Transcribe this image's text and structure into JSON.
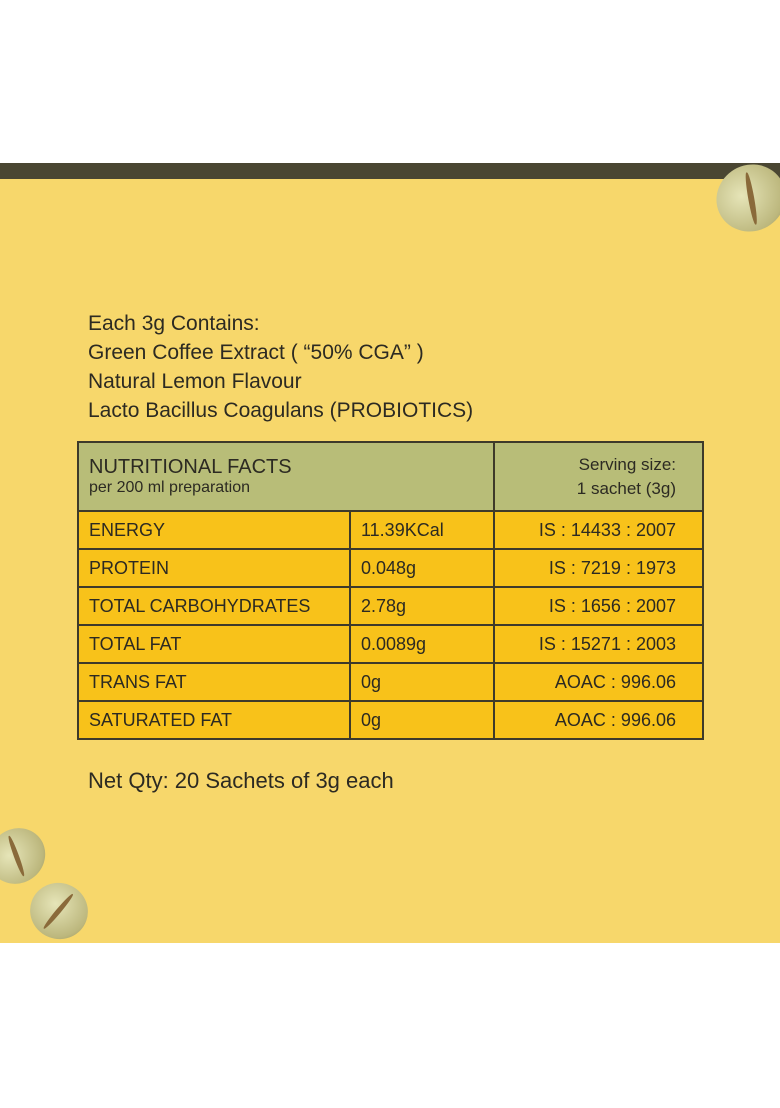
{
  "contents": {
    "heading": "Each 3g Contains:",
    "items": [
      "Green Coffee Extract ( “50% CGA” )",
      "Natural Lemon Flavour",
      "Lacto Bacillus Coagulans (PROBIOTICS)"
    ]
  },
  "table": {
    "title": "NUTRITIONAL FACTS",
    "subtitle": "per 200 ml preparation",
    "serving_label": "Serving size:",
    "serving_value": "1 sachet (3g)",
    "rows": [
      {
        "name": "ENERGY",
        "value": "11.39KCal",
        "method": "IS : 14433 : 2007"
      },
      {
        "name": "PROTEIN",
        "value": "0.048g",
        "method": "IS : 7219 : 1973"
      },
      {
        "name": "TOTAL CARBOHYDRATES",
        "value": "2.78g",
        "method": "IS : 1656 : 2007"
      },
      {
        "name": "TOTAL FAT",
        "value": "0.0089g",
        "method": "IS : 15271 : 2003"
      },
      {
        "name": "TRANS FAT",
        "value": "0g",
        "method": "AOAC : 996.06"
      },
      {
        "name": "SATURATED FAT",
        "value": "0g",
        "method": "AOAC : 996.06"
      }
    ]
  },
  "net_qty": "Net Qty: 20 Sachets of 3g each",
  "colors": {
    "background": "#f7d76b",
    "header": "#b8bd78",
    "rows": "#f8c21a",
    "band": "#4a4632"
  }
}
